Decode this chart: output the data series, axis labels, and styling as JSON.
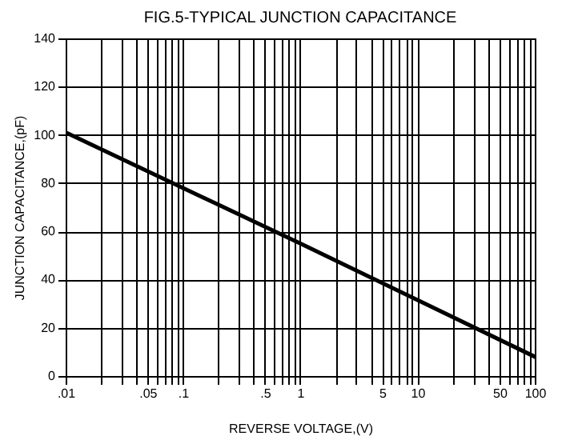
{
  "chart_data": {
    "type": "line",
    "title": "FIG.5-TYPICAL JUNCTION CAPACITANCE",
    "xlabel": "REVERSE VOLTAGE,(V)",
    "ylabel": "JUNCTION CAPACITANCE,(pF)",
    "x": [
      0.01,
      1,
      100
    ],
    "series": [
      {
        "color": "#000000",
        "values": [
          101,
          55,
          8
        ]
      }
    ],
    "log": "x",
    "xlim": [
      0.01,
      100
    ],
    "ylim": [
      0,
      140
    ],
    "xticks": [
      {
        "value": 0.01,
        "label": ".01"
      },
      {
        "value": 0.02,
        "label": null
      },
      {
        "value": 0.03,
        "label": null
      },
      {
        "value": 0.04,
        "label": null
      },
      {
        "value": 0.05,
        "label": ".05"
      },
      {
        "value": 0.06,
        "label": null
      },
      {
        "value": 0.07,
        "label": null
      },
      {
        "value": 0.08,
        "label": null
      },
      {
        "value": 0.09,
        "label": null
      },
      {
        "value": 0.1,
        "label": ".1"
      },
      {
        "value": 0.2,
        "label": null
      },
      {
        "value": 0.3,
        "label": null
      },
      {
        "value": 0.4,
        "label": null
      },
      {
        "value": 0.5,
        "label": ".5"
      },
      {
        "value": 0.6,
        "label": null
      },
      {
        "value": 0.7,
        "label": null
      },
      {
        "value": 0.8,
        "label": null
      },
      {
        "value": 0.9,
        "label": null
      },
      1,
      {
        "value": 2,
        "label": null
      },
      {
        "value": 3,
        "label": null
      },
      {
        "value": 4,
        "label": null
      },
      5,
      {
        "value": 6,
        "label": null
      },
      {
        "value": 7,
        "label": null
      },
      {
        "value": 8,
        "label": null
      },
      {
        "value": 9,
        "label": null
      },
      10,
      {
        "value": 20,
        "label": null
      },
      {
        "value": 30,
        "label": null
      },
      {
        "value": 40,
        "label": null
      },
      50,
      {
        "value": 60,
        "label": null
      },
      {
        "value": 70,
        "label": null
      },
      {
        "value": 80,
        "label": null
      },
      {
        "value": 90,
        "label": null
      },
      100
    ],
    "yticks": [
      0,
      20,
      40,
      60,
      80,
      100,
      120,
      140
    ],
    "grid": true,
    "legend": false,
    "marker": "none",
    "line_style": "solid"
  }
}
